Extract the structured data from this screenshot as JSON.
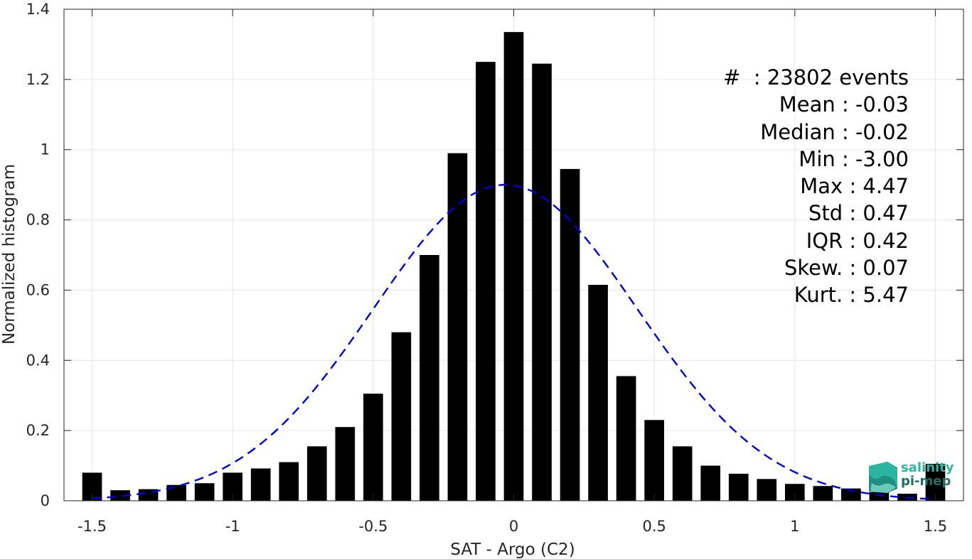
{
  "chart_data": {
    "type": "bar",
    "xlabel": "SAT - Argo (C2)",
    "ylabel": "Normalized histogram",
    "xlim": [
      -1.6,
      1.6
    ],
    "ylim": [
      0,
      1.4
    ],
    "xticks": [
      -1.5,
      -1,
      -0.5,
      0,
      0.5,
      1,
      1.5
    ],
    "xtick_labels": [
      "-1.5",
      "-1",
      "-0.5",
      "0",
      "0.5",
      "1",
      "1.5"
    ],
    "yticks": [
      0,
      0.2,
      0.4,
      0.6,
      0.8,
      1,
      1.2,
      1.4
    ],
    "ytick_labels": [
      "0",
      "0.2",
      "0.4",
      "0.6",
      "0.8",
      "1",
      "1.2",
      "1.4"
    ],
    "grid": true,
    "bar_color": "#000000",
    "fit_color": "#0000dd",
    "bars": {
      "x": [
        -1.5,
        -1.4,
        -1.3,
        -1.2,
        -1.1,
        -1.0,
        -0.9,
        -0.8,
        -0.7,
        -0.6,
        -0.5,
        -0.4,
        -0.3,
        -0.2,
        -0.1,
        0.0,
        0.1,
        0.2,
        0.3,
        0.4,
        0.5,
        0.6,
        0.7,
        0.8,
        0.9,
        1.0,
        1.1,
        1.2,
        1.3,
        1.4,
        1.5
      ],
      "values": [
        0.08,
        0.03,
        0.033,
        0.045,
        0.05,
        0.08,
        0.092,
        0.11,
        0.155,
        0.21,
        0.305,
        0.48,
        0.7,
        0.99,
        1.25,
        1.335,
        1.245,
        0.945,
        0.615,
        0.355,
        0.23,
        0.155,
        0.1,
        0.077,
        0.062,
        0.048,
        0.042,
        0.035,
        0.025,
        0.02,
        0.105
      ]
    },
    "fit_curve": {
      "type": "gaussian",
      "mean": -0.03,
      "std": 0.47,
      "peak": 0.9,
      "line_style": "dashed"
    }
  },
  "stats": {
    "events": "#  : 23802 events",
    "mean": "Mean : -0.03",
    "median": "Median : -0.02",
    "min": "Min : -3.00",
    "max": "Max : 4.47",
    "std": "Std : 0.47",
    "iqr": "IQR : 0.42",
    "skew": "Skew. : 0.07",
    "kurt": "Kurt. : 5.47"
  },
  "logo": {
    "line1": "salinity",
    "line2": "pi-mep"
  }
}
